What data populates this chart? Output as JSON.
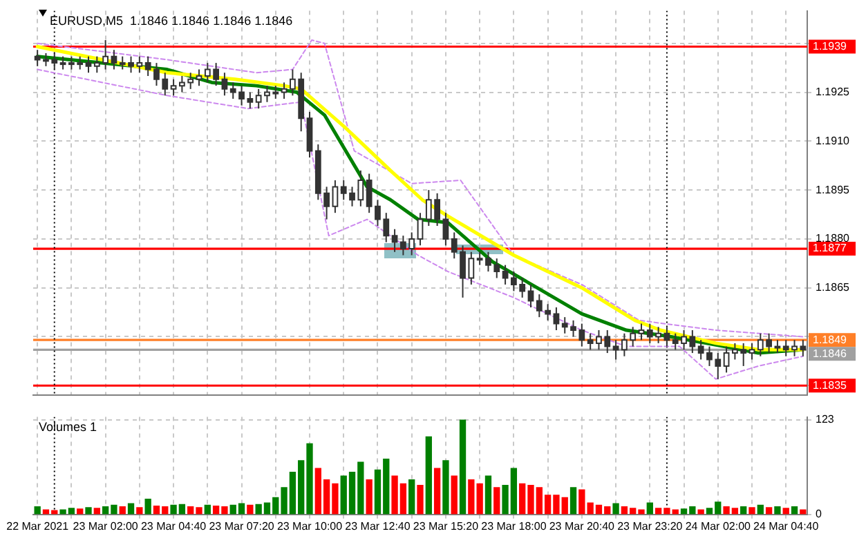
{
  "chart_data": [
    {
      "type": "candlestick",
      "title": "EURUSD,M5  1.1846 1.1846 1.1846 1.1846",
      "x": [
        "2021-03-22T23:20",
        "2021-03-22T23:40",
        "2021-03-23T00:00",
        "2021-03-23T00:20",
        "2021-03-23T00:40",
        "2021-03-23T01:00",
        "2021-03-23T01:20",
        "2021-03-23T01:40",
        "2021-03-23T02:00",
        "2021-03-23T02:20",
        "2021-03-23T02:40",
        "2021-03-23T03:00",
        "2021-03-23T03:20",
        "2021-03-23T03:40",
        "2021-03-23T04:00",
        "2021-03-23T04:20",
        "2021-03-23T04:40",
        "2021-03-23T05:00",
        "2021-03-23T05:20",
        "2021-03-23T05:40",
        "2021-03-23T06:00",
        "2021-03-23T06:20",
        "2021-03-23T06:40",
        "2021-03-23T07:00",
        "2021-03-23T07:20",
        "2021-03-23T07:40",
        "2021-03-23T08:00",
        "2021-03-23T08:20",
        "2021-03-23T08:40",
        "2021-03-23T09:00",
        "2021-03-23T09:20",
        "2021-03-23T09:40",
        "2021-03-23T10:00",
        "2021-03-23T10:20",
        "2021-03-23T10:40",
        "2021-03-23T11:00",
        "2021-03-23T11:20",
        "2021-03-23T11:40",
        "2021-03-23T12:00",
        "2021-03-23T12:20",
        "2021-03-23T12:40",
        "2021-03-23T13:00",
        "2021-03-23T13:20",
        "2021-03-23T13:40",
        "2021-03-23T14:00",
        "2021-03-23T14:20",
        "2021-03-23T14:40",
        "2021-03-23T15:00",
        "2021-03-23T15:20",
        "2021-03-23T15:40",
        "2021-03-23T16:00",
        "2021-03-23T16:20",
        "2021-03-23T16:40",
        "2021-03-23T17:00",
        "2021-03-23T17:20",
        "2021-03-23T17:40",
        "2021-03-23T18:00",
        "2021-03-23T18:20",
        "2021-03-23T18:40",
        "2021-03-23T19:00",
        "2021-03-23T19:20",
        "2021-03-23T19:40",
        "2021-03-23T20:00",
        "2021-03-23T20:20",
        "2021-03-23T20:40",
        "2021-03-23T21:00",
        "2021-03-23T21:20",
        "2021-03-23T21:40",
        "2021-03-23T22:00",
        "2021-03-23T22:20",
        "2021-03-23T22:40",
        "2021-03-23T23:00",
        "2021-03-23T23:20",
        "2021-03-23T23:40",
        "2021-03-24T00:00",
        "2021-03-24T00:20",
        "2021-03-24T00:40",
        "2021-03-24T01:00",
        "2021-03-24T01:20",
        "2021-03-24T01:40",
        "2021-03-24T02:00",
        "2021-03-24T02:20",
        "2021-03-24T02:40",
        "2021-03-24T03:00",
        "2021-03-24T03:20",
        "2021-03-24T03:40",
        "2021-03-24T04:00",
        "2021-03-24T04:20",
        "2021-03-24T04:40",
        "2021-03-24T05:00",
        "2021-03-24T05:20"
      ],
      "ohlc": [
        [
          1.1936,
          1.1938,
          1.1933,
          1.1935
        ],
        [
          1.1935,
          1.1937,
          1.1933,
          1.1935
        ],
        [
          1.1935,
          1.1937,
          1.1932,
          1.1934
        ],
        [
          1.1934,
          1.1936,
          1.1932,
          1.1934
        ],
        [
          1.1934,
          1.1936,
          1.1932,
          1.1934
        ],
        [
          1.1934,
          1.1936,
          1.1932,
          1.1934
        ],
        [
          1.1934,
          1.1936,
          1.1931,
          1.1933
        ],
        [
          1.1933,
          1.1936,
          1.1931,
          1.1934
        ],
        [
          1.1934,
          1.1941,
          1.1932,
          1.1936
        ],
        [
          1.1936,
          1.1938,
          1.1932,
          1.1934
        ],
        [
          1.1934,
          1.1936,
          1.1932,
          1.1934
        ],
        [
          1.1934,
          1.1936,
          1.1931,
          1.1933
        ],
        [
          1.1933,
          1.1936,
          1.1931,
          1.1934
        ],
        [
          1.1934,
          1.1936,
          1.193,
          1.1932
        ],
        [
          1.1932,
          1.1934,
          1.1927,
          1.1929
        ],
        [
          1.1929,
          1.1931,
          1.1924,
          1.1926
        ],
        [
          1.1926,
          1.1929,
          1.1924,
          1.1927
        ],
        [
          1.1927,
          1.193,
          1.1925,
          1.1928
        ],
        [
          1.1928,
          1.1931,
          1.1926,
          1.1929
        ],
        [
          1.1929,
          1.1932,
          1.1927,
          1.193
        ],
        [
          1.193,
          1.1934,
          1.1928,
          1.1932
        ],
        [
          1.1932,
          1.1934,
          1.1927,
          1.1929
        ],
        [
          1.1929,
          1.1931,
          1.1924,
          1.1926
        ],
        [
          1.1926,
          1.1928,
          1.1923,
          1.1925
        ],
        [
          1.1925,
          1.1927,
          1.1921,
          1.1923
        ],
        [
          1.1923,
          1.1925,
          1.192,
          1.1922
        ],
        [
          1.1922,
          1.1926,
          1.192,
          1.1924
        ],
        [
          1.1924,
          1.1927,
          1.1922,
          1.1925
        ],
        [
          1.1925,
          1.1927,
          1.1923,
          1.1925
        ],
        [
          1.1925,
          1.1928,
          1.1923,
          1.1926
        ],
        [
          1.1926,
          1.1932,
          1.1924,
          1.1929
        ],
        [
          1.1929,
          1.1931,
          1.1913,
          1.1917
        ],
        [
          1.1917,
          1.1919,
          1.1905,
          1.1907
        ],
        [
          1.1907,
          1.1909,
          1.1892,
          1.1894
        ],
        [
          1.1894,
          1.1896,
          1.1886,
          1.189
        ],
        [
          1.189,
          1.1898,
          1.1888,
          1.1896
        ],
        [
          1.1896,
          1.1898,
          1.1892,
          1.1894
        ],
        [
          1.1894,
          1.1896,
          1.189,
          1.1892
        ],
        [
          1.1892,
          1.1901,
          1.189,
          1.1898
        ],
        [
          1.1898,
          1.19,
          1.1888,
          1.189
        ],
        [
          1.189,
          1.1892,
          1.1884,
          1.1886
        ],
        [
          1.1886,
          1.1888,
          1.1879,
          1.1881
        ],
        [
          1.1881,
          1.1883,
          1.1876,
          1.1879
        ],
        [
          1.1879,
          1.1881,
          1.1875,
          1.1877
        ],
        [
          1.1877,
          1.1882,
          1.1875,
          1.188
        ],
        [
          1.188,
          1.1888,
          1.1878,
          1.1886
        ],
        [
          1.1886,
          1.1895,
          1.1884,
          1.1892
        ],
        [
          1.1892,
          1.1894,
          1.1884,
          1.1886
        ],
        [
          1.1886,
          1.1888,
          1.1878,
          1.188
        ],
        [
          1.188,
          1.1882,
          1.1874,
          1.1876
        ],
        [
          1.1876,
          1.1878,
          1.1862,
          1.1868
        ],
        [
          1.1868,
          1.1876,
          1.1866,
          1.1874
        ],
        [
          1.1874,
          1.1876,
          1.1872,
          1.1874
        ],
        [
          1.1874,
          1.1876,
          1.187,
          1.1872
        ],
        [
          1.1872,
          1.1874,
          1.1868,
          1.187
        ],
        [
          1.187,
          1.1872,
          1.1866,
          1.1868
        ],
        [
          1.1868,
          1.187,
          1.1864,
          1.1866
        ],
        [
          1.1866,
          1.1868,
          1.1862,
          1.1864
        ],
        [
          1.1864,
          1.1866,
          1.1859,
          1.1861
        ],
        [
          1.1861,
          1.1863,
          1.1856,
          1.1858
        ],
        [
          1.1858,
          1.186,
          1.1855,
          1.1857
        ],
        [
          1.1857,
          1.1859,
          1.1852,
          1.1854
        ],
        [
          1.1854,
          1.1856,
          1.1851,
          1.1853
        ],
        [
          1.1853,
          1.1855,
          1.185,
          1.1852
        ],
        [
          1.1852,
          1.1854,
          1.1847,
          1.1849
        ],
        [
          1.1849,
          1.1851,
          1.1846,
          1.1848
        ],
        [
          1.1848,
          1.1852,
          1.1846,
          1.185
        ],
        [
          1.185,
          1.1852,
          1.1845,
          1.1847
        ],
        [
          1.1847,
          1.1849,
          1.1843,
          1.1846
        ],
        [
          1.1846,
          1.1851,
          1.1844,
          1.1849
        ],
        [
          1.1849,
          1.1853,
          1.1847,
          1.1851
        ],
        [
          1.1851,
          1.1854,
          1.1849,
          1.1852
        ],
        [
          1.1852,
          1.1854,
          1.1848,
          1.185
        ],
        [
          1.185,
          1.1853,
          1.1848,
          1.1851
        ],
        [
          1.1851,
          1.1853,
          1.1847,
          1.1849
        ],
        [
          1.1849,
          1.1851,
          1.1846,
          1.1848
        ],
        [
          1.1848,
          1.1852,
          1.1846,
          1.185
        ],
        [
          1.185,
          1.1852,
          1.1845,
          1.1847
        ],
        [
          1.1847,
          1.1849,
          1.1843,
          1.1845
        ],
        [
          1.1845,
          1.1847,
          1.1841,
          1.1843
        ],
        [
          1.1843,
          1.1845,
          1.1837,
          1.1841
        ],
        [
          1.1841,
          1.1847,
          1.1839,
          1.1845
        ],
        [
          1.1845,
          1.1848,
          1.1843,
          1.1846
        ],
        [
          1.1846,
          1.1848,
          1.1841,
          1.1845
        ],
        [
          1.1845,
          1.1848,
          1.1843,
          1.1846
        ],
        [
          1.1846,
          1.1851,
          1.1844,
          1.1849
        ],
        [
          1.1849,
          1.1851,
          1.1845,
          1.1847
        ],
        [
          1.1847,
          1.1849,
          1.1845,
          1.1847
        ],
        [
          1.1847,
          1.1849,
          1.1844,
          1.1846
        ],
        [
          1.1846,
          1.1849,
          1.1844,
          1.1847
        ],
        [
          1.1847,
          1.1849,
          1.1844,
          1.1846
        ]
      ],
      "series": [
        {
          "type": "line",
          "color": "#ffff00",
          "x": [
            "2021-03-22T23:20",
            "2021-03-23T04:25",
            "2021-03-23T07:05",
            "2021-03-23T09:00",
            "2021-03-23T09:40",
            "2021-03-23T11:25",
            "2021-03-23T13:10",
            "2021-03-23T14:25",
            "2021-03-23T15:25",
            "2021-03-23T18:00",
            "2021-03-23T20:40",
            "2021-03-23T22:45",
            "2021-03-23T23:45",
            "2021-03-24T01:55",
            "2021-03-24T03:35",
            "2021-03-24T05:20"
          ],
          "values": [
            1.1939,
            1.1931,
            1.1929,
            1.1927,
            1.1926,
            1.1914,
            1.1901,
            1.1892,
            1.1887,
            1.1875,
            1.1865,
            1.1855,
            1.1852,
            1.1848,
            1.1846,
            1.1846
          ]
        },
        {
          "type": "line",
          "color": "#008000",
          "x": [
            "2021-03-22T23:20",
            "2021-03-23T04:25",
            "2021-03-23T06:10",
            "2021-03-23T07:55",
            "2021-03-23T09:30",
            "2021-03-23T10:35",
            "2021-03-23T11:25",
            "2021-03-23T12:15",
            "2021-03-23T13:10",
            "2021-03-23T14:15",
            "2021-03-23T15:25",
            "2021-03-23T17:10",
            "2021-03-23T18:55",
            "2021-03-23T20:40",
            "2021-03-23T22:25",
            "2021-03-24T00:10",
            "2021-03-24T02:15",
            "2021-03-24T03:35",
            "2021-03-24T05:20"
          ],
          "values": [
            1.1936,
            1.1932,
            1.1928,
            1.1927,
            1.1925,
            1.1918,
            1.1907,
            1.1896,
            1.1892,
            1.1886,
            1.1885,
            1.1873,
            1.1865,
            1.1857,
            1.1852,
            1.185,
            1.1847,
            1.1845,
            1.1846
          ]
        },
        {
          "type": "line",
          "color": "#cc88ee",
          "line_style": "dashed",
          "x": [
            "2021-03-22T23:20",
            "2021-03-23T04:25",
            "2021-03-23T07:55",
            "2021-03-23T09:20",
            "2021-03-23T10:05",
            "2021-03-23T10:35",
            "2021-03-23T11:45",
            "2021-03-23T14:00",
            "2021-03-23T15:55",
            "2021-03-23T18:00",
            "2021-03-23T20:40",
            "2021-03-23T22:55",
            "2021-03-24T01:55",
            "2021-03-24T05:20"
          ],
          "values": [
            1.194,
            1.1935,
            1.1931,
            1.1932,
            1.1941,
            1.194,
            1.1907,
            1.1897,
            1.1898,
            1.1875,
            1.1866,
            1.1855,
            1.1852,
            1.185
          ]
        },
        {
          "type": "line",
          "color": "#cc88ee",
          "line_style": "dashed",
          "x": [
            "2021-03-22T23:20",
            "2021-03-23T04:25",
            "2021-03-23T07:35",
            "2021-03-23T09:40",
            "2021-03-23T10:45",
            "2021-03-23T12:15",
            "2021-03-23T14:15",
            "2021-03-23T15:25",
            "2021-03-23T18:00",
            "2021-03-23T20:40",
            "2021-03-23T22:25",
            "2021-03-24T00:30",
            "2021-03-24T01:55",
            "2021-03-24T03:35",
            "2021-03-24T05:20"
          ],
          "values": [
            1.1932,
            1.1924,
            1.192,
            1.1922,
            1.1881,
            1.1886,
            1.1875,
            1.187,
            1.1862,
            1.1852,
            1.1847,
            1.1847,
            1.1837,
            1.1841,
            1.1844
          ]
        }
      ],
      "xlim": [
        "2021-03-22T23:10",
        "2021-03-24T05:30"
      ],
      "xticks": [
        {
          "value": "2021-03-22T23:20",
          "label": null
        },
        {
          "value": "2021-03-23T00:40",
          "label": null
        },
        {
          "value": "2021-03-23T02:00",
          "label": null
        },
        {
          "value": "2021-03-23T03:20",
          "label": null
        },
        {
          "value": "2021-03-23T04:40",
          "label": null
        },
        {
          "value": "2021-03-23T06:00",
          "label": null
        },
        {
          "value": "2021-03-23T07:20",
          "label": null
        },
        {
          "value": "2021-03-23T08:40",
          "label": null
        },
        {
          "value": "2021-03-23T10:00",
          "label": null
        },
        {
          "value": "2021-03-23T11:20",
          "label": null
        },
        {
          "value": "2021-03-23T12:40",
          "label": null
        },
        {
          "value": "2021-03-23T14:00",
          "label": null
        },
        {
          "value": "2021-03-23T15:20",
          "label": null
        },
        {
          "value": "2021-03-23T16:40",
          "label": null
        },
        {
          "value": "2021-03-23T18:00",
          "label": null
        },
        {
          "value": "2021-03-23T19:20",
          "label": null
        },
        {
          "value": "2021-03-23T20:40",
          "label": null
        },
        {
          "value": "2021-03-23T22:00",
          "label": null
        },
        {
          "value": "2021-03-23T23:20",
          "label": null
        },
        {
          "value": "2021-03-24T00:40",
          "label": null
        },
        {
          "value": "2021-03-24T02:00",
          "label": null
        },
        {
          "value": "2021-03-24T03:20",
          "label": null
        },
        {
          "value": "2021-03-24T04:40",
          "label": null
        }
      ],
      "ylim": [
        1.1832,
        1.195
      ],
      "yticks": [
        {
          "value": 1.194,
          "label": null
        },
        1.1925,
        {
          "value": 1.191,
          "label": "1.1910"
        },
        1.1895,
        {
          "value": 1.188,
          "label": "1.1880"
        },
        1.1865,
        {
          "value": 1.185,
          "label": null
        },
        {
          "value": 1.1835,
          "label": null
        }
      ],
      "ref_lines": [
        {
          "axis": "y",
          "value": 1.1939,
          "label": "1.1939",
          "color": "#ff0000"
        },
        {
          "axis": "y",
          "value": 1.1877,
          "label": "1.1877",
          "color": "#ff0000"
        },
        {
          "axis": "y",
          "value": 1.1849,
          "label": "1.1849",
          "color": "#ff7f27"
        },
        {
          "axis": "y",
          "value": 1.1846,
          "label": "1.1846",
          "color": "#a0a0a0"
        },
        {
          "axis": "y",
          "value": 1.1835,
          "label": "1.1835",
          "color": "#ff0000"
        },
        {
          "axis": "x",
          "value": "2021-03-23T00:00",
          "label": null,
          "color": "#000000",
          "line_style": "dotted"
        },
        {
          "axis": "x",
          "value": "2021-03-24T00:00",
          "label": null,
          "color": "#000000",
          "line_style": "dotted"
        }
      ],
      "grid": true,
      "tick_labels": "y"
    },
    {
      "type": "bar",
      "title": "Volumes 1",
      "x": [
        "2021-03-22T23:20",
        "2021-03-22T23:40",
        "2021-03-23T00:00",
        "2021-03-23T00:20",
        "2021-03-23T00:40",
        "2021-03-23T01:00",
        "2021-03-23T01:20",
        "2021-03-23T01:40",
        "2021-03-23T02:00",
        "2021-03-23T02:20",
        "2021-03-23T02:40",
        "2021-03-23T03:00",
        "2021-03-23T03:20",
        "2021-03-23T03:40",
        "2021-03-23T04:00",
        "2021-03-23T04:20",
        "2021-03-23T04:40",
        "2021-03-23T05:00",
        "2021-03-23T05:20",
        "2021-03-23T05:40",
        "2021-03-23T06:00",
        "2021-03-23T06:20",
        "2021-03-23T06:40",
        "2021-03-23T07:00",
        "2021-03-23T07:20",
        "2021-03-23T07:40",
        "2021-03-23T08:00",
        "2021-03-23T08:20",
        "2021-03-23T08:40",
        "2021-03-23T09:00",
        "2021-03-23T09:20",
        "2021-03-23T09:40",
        "2021-03-23T10:00",
        "2021-03-23T10:20",
        "2021-03-23T10:40",
        "2021-03-23T11:00",
        "2021-03-23T11:20",
        "2021-03-23T11:40",
        "2021-03-23T12:00",
        "2021-03-23T12:20",
        "2021-03-23T12:40",
        "2021-03-23T13:00",
        "2021-03-23T13:20",
        "2021-03-23T13:40",
        "2021-03-23T14:00",
        "2021-03-23T14:20",
        "2021-03-23T14:40",
        "2021-03-23T15:00",
        "2021-03-23T15:20",
        "2021-03-23T15:40",
        "2021-03-23T16:00",
        "2021-03-23T16:20",
        "2021-03-23T16:40",
        "2021-03-23T17:00",
        "2021-03-23T17:20",
        "2021-03-23T17:40",
        "2021-03-23T18:00",
        "2021-03-23T18:20",
        "2021-03-23T18:40",
        "2021-03-23T19:00",
        "2021-03-23T19:20",
        "2021-03-23T19:40",
        "2021-03-23T20:00",
        "2021-03-23T20:20",
        "2021-03-23T20:40",
        "2021-03-23T21:00",
        "2021-03-23T21:20",
        "2021-03-23T21:40",
        "2021-03-23T22:00",
        "2021-03-23T22:20",
        "2021-03-23T22:40",
        "2021-03-23T23:00",
        "2021-03-23T23:20",
        "2021-03-23T23:40",
        "2021-03-24T00:00",
        "2021-03-24T00:20",
        "2021-03-24T00:40",
        "2021-03-24T01:00",
        "2021-03-24T01:20",
        "2021-03-24T01:40",
        "2021-03-24T02:00",
        "2021-03-24T02:20",
        "2021-03-24T02:40",
        "2021-03-24T03:00",
        "2021-03-24T03:20",
        "2021-03-24T03:40",
        "2021-03-24T04:00",
        "2021-03-24T04:20",
        "2021-03-24T04:40",
        "2021-03-24T05:00",
        "2021-03-24T05:20"
      ],
      "values": [
        10,
        6,
        5,
        6,
        8,
        7,
        9,
        8,
        10,
        12,
        10,
        14,
        9,
        20,
        11,
        10,
        12,
        13,
        10,
        9,
        12,
        11,
        10,
        12,
        14,
        12,
        13,
        15,
        22,
        35,
        55,
        70,
        92,
        60,
        45,
        40,
        50,
        55,
        68,
        45,
        58,
        72,
        50,
        40,
        45,
        38,
        101,
        60,
        70,
        50,
        123,
        45,
        40,
        50,
        35,
        38,
        60,
        40,
        38,
        35,
        25,
        25,
        22,
        35,
        32,
        15,
        12,
        10,
        14,
        10,
        8,
        6,
        15,
        8,
        8,
        6,
        7,
        10,
        6,
        8,
        16,
        10,
        8,
        10,
        9,
        12,
        9,
        10,
        8,
        10,
        6
      ],
      "colors": [
        "#008000",
        "#ff0000",
        "#ff0000",
        "#008000",
        "#008000",
        "#ff0000",
        "#008000",
        "#ff0000",
        "#008000",
        "#008000",
        "#ff0000",
        "#008000",
        "#ff0000",
        "#008000",
        "#ff0000",
        "#ff0000",
        "#008000",
        "#008000",
        "#ff0000",
        "#ff0000",
        "#008000",
        "#ff0000",
        "#ff0000",
        "#008000",
        "#008000",
        "#ff0000",
        "#008000",
        "#008000",
        "#008000",
        "#008000",
        "#008000",
        "#008000",
        "#008000",
        "#ff0000",
        "#ff0000",
        "#ff0000",
        "#008000",
        "#008000",
        "#008000",
        "#ff0000",
        "#008000",
        "#008000",
        "#ff0000",
        "#ff0000",
        "#008000",
        "#ff0000",
        "#008000",
        "#ff0000",
        "#008000",
        "#ff0000",
        "#008000",
        "#ff0000",
        "#ff0000",
        "#008000",
        "#ff0000",
        "#008000",
        "#008000",
        "#ff0000",
        "#ff0000",
        "#ff0000",
        "#ff0000",
        "#ff0000",
        "#ff0000",
        "#008000",
        "#ff0000",
        "#ff0000",
        "#ff0000",
        "#ff0000",
        "#008000",
        "#ff0000",
        "#ff0000",
        "#ff0000",
        "#008000",
        "#ff0000",
        "#ff0000",
        "#ff0000",
        "#008000",
        "#008000",
        "#ff0000",
        "#008000",
        "#008000",
        "#ff0000",
        "#ff0000",
        "#008000",
        "#ff0000",
        "#008000",
        "#ff0000",
        "#008000",
        "#ff0000",
        "#008000",
        "#ff0000"
      ],
      "xlim": [
        "2021-03-22T23:10",
        "2021-03-24T05:30"
      ],
      "xticks": [
        {
          "value": "2021-03-22T23:20",
          "label": "22 Mar 2021"
        },
        {
          "value": "2021-03-23T00:40",
          "label": null
        },
        {
          "value": "2021-03-23T02:00",
          "label": "23 Mar 02:00"
        },
        {
          "value": "2021-03-23T03:20",
          "label": null
        },
        {
          "value": "2021-03-23T04:40",
          "label": "23 Mar 04:40"
        },
        {
          "value": "2021-03-23T06:00",
          "label": null
        },
        {
          "value": "2021-03-23T07:20",
          "label": "23 Mar 07:20"
        },
        {
          "value": "2021-03-23T08:40",
          "label": null
        },
        {
          "value": "2021-03-23T10:00",
          "label": "23 Mar 10:00"
        },
        {
          "value": "2021-03-23T11:20",
          "label": null
        },
        {
          "value": "2021-03-23T12:40",
          "label": "23 Mar 12:40"
        },
        {
          "value": "2021-03-23T14:00",
          "label": null
        },
        {
          "value": "2021-03-23T15:20",
          "label": "23 Mar 15:20"
        },
        {
          "value": "2021-03-23T16:40",
          "label": null
        },
        {
          "value": "2021-03-23T18:00",
          "label": "23 Mar 18:00"
        },
        {
          "value": "2021-03-23T19:20",
          "label": null
        },
        {
          "value": "2021-03-23T20:40",
          "label": "23 Mar 20:40"
        },
        {
          "value": "2021-03-23T22:00",
          "label": null
        },
        {
          "value": "2021-03-23T23:20",
          "label": "23 Mar 23:20"
        },
        {
          "value": "2021-03-24T00:40",
          "label": null
        },
        {
          "value": "2021-03-24T02:00",
          "label": "24 Mar 02:00"
        },
        {
          "value": "2021-03-24T03:20",
          "label": null
        },
        {
          "value": "2021-03-24T04:40",
          "label": "24 Mar 04:40"
        }
      ],
      "ylim": [
        0,
        127
      ],
      "yticks": [
        0,
        123
      ],
      "ref_lines": [
        {
          "axis": "x",
          "value": "2021-03-23T00:00",
          "label": null,
          "color": "#000000",
          "line_style": "dotted"
        },
        {
          "axis": "x",
          "value": "2021-03-24T00:00",
          "label": null,
          "color": "#000000",
          "line_style": "dotted"
        }
      ],
      "grid": true
    }
  ]
}
